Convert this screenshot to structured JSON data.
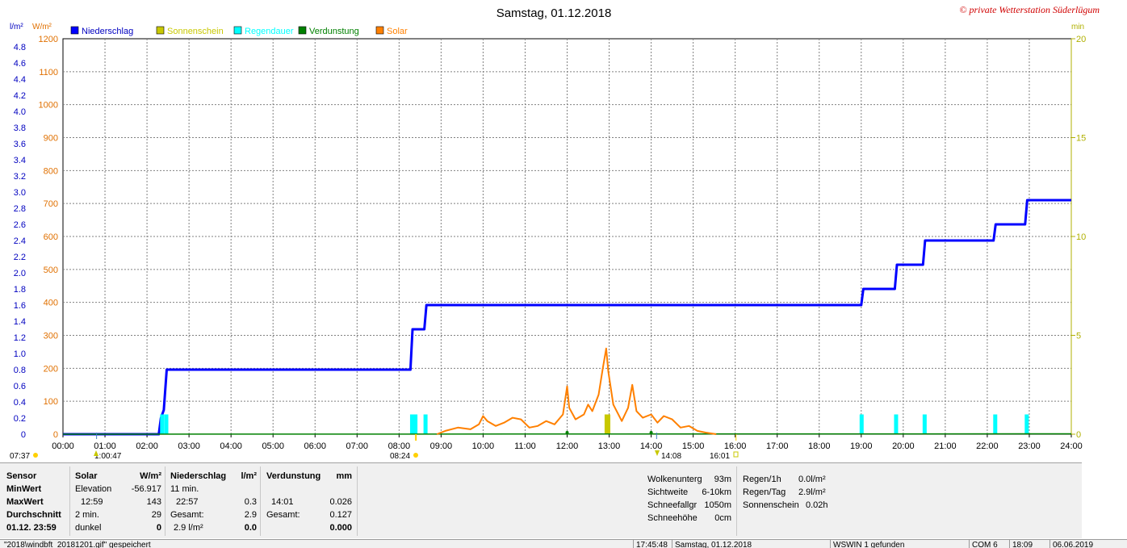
{
  "header": {
    "title": "Samstag, 01.12.2018",
    "copyright": "© private Wetterstation Süderlügum"
  },
  "legend": [
    {
      "label": "Niederschlag",
      "color": "#0000ff"
    },
    {
      "label": "Sonnenschein",
      "color": "#c8c800"
    },
    {
      "label": "Regendauer",
      "color": "#00ffff"
    },
    {
      "label": "Verdunstung",
      "color": "#008000"
    },
    {
      "label": "Solar",
      "color": "#ff8000"
    }
  ],
  "chart_data": {
    "type": "line",
    "x_range": [
      "00:00",
      "24:00"
    ],
    "x_ticks": [
      "00:00",
      "01:00",
      "02:00",
      "03:00",
      "04:00",
      "05:00",
      "06:00",
      "07:00",
      "08:00",
      "09:00",
      "10:00",
      "11:00",
      "12:00",
      "13:00",
      "14:00",
      "15:00",
      "16:00",
      "17:00",
      "18:00",
      "19:00",
      "20:00",
      "21:00",
      "22:00",
      "23:00",
      "24:00"
    ],
    "axes": {
      "left_inner": {
        "unit": "l/m²",
        "color": "#0000c0",
        "range": [
          0,
          4.9
        ],
        "ticks": [
          "0",
          "0.2",
          "0.4",
          "0.6",
          "0.8",
          "1.0",
          "1.2",
          "1.4",
          "1.6",
          "1.8",
          "2.0",
          "2.2",
          "2.4",
          "2.6",
          "2.8",
          "3.0",
          "3.2",
          "3.4",
          "3.6",
          "3.8",
          "4.0",
          "4.2",
          "4.4",
          "4.6",
          "4.8"
        ]
      },
      "left_outer": {
        "unit": "W/m²",
        "color": "#e07000",
        "range": [
          0,
          1200
        ],
        "ticks": [
          "0",
          "100",
          "200",
          "300",
          "400",
          "500",
          "600",
          "700",
          "800",
          "900",
          "1000",
          "1100",
          "1200"
        ]
      },
      "right": {
        "unit": "min",
        "color": "#b0b000",
        "range": [
          0,
          20
        ],
        "ticks": [
          "0",
          "5",
          "10",
          "15",
          "20"
        ]
      }
    },
    "series": [
      {
        "name": "Niederschlag",
        "axis": "left_inner",
        "step": true,
        "points": [
          [
            0,
            0
          ],
          [
            2.28,
            0
          ],
          [
            2.33,
            0.2
          ],
          [
            2.4,
            0.3
          ],
          [
            2.47,
            0.8
          ],
          [
            8.27,
            0.8
          ],
          [
            8.32,
            1.3
          ],
          [
            8.6,
            1.3
          ],
          [
            8.65,
            1.6
          ],
          [
            19.0,
            1.6
          ],
          [
            19.05,
            1.8
          ],
          [
            19.8,
            1.8
          ],
          [
            19.85,
            2.1
          ],
          [
            20.47,
            2.1
          ],
          [
            20.52,
            2.4
          ],
          [
            22.15,
            2.4
          ],
          [
            22.2,
            2.6
          ],
          [
            22.9,
            2.6
          ],
          [
            22.95,
            2.9
          ],
          [
            24.0,
            2.9
          ]
        ]
      },
      {
        "name": "Regendauer",
        "axis": "right",
        "bars": [
          2.35,
          2.45,
          8.3,
          8.38,
          8.62,
          19.0,
          19.82,
          20.5,
          22.18,
          22.93
        ],
        "bar_value": 1.0
      },
      {
        "name": "Sonnenschein",
        "axis": "right",
        "bars": [
          12.93,
          12.97
        ],
        "bar_value": 1.0
      },
      {
        "name": "Verdunstung",
        "axis": "left_inner",
        "values_note": "0.127 total",
        "points": [
          [
            0,
            0
          ],
          [
            24,
            0.005
          ]
        ]
      },
      {
        "name": "Solar",
        "axis": "left_outer",
        "points": [
          [
            8.9,
            0
          ],
          [
            9.1,
            10
          ],
          [
            9.4,
            20
          ],
          [
            9.7,
            15
          ],
          [
            9.9,
            30
          ],
          [
            10.0,
            55
          ],
          [
            10.1,
            40
          ],
          [
            10.3,
            25
          ],
          [
            10.5,
            35
          ],
          [
            10.7,
            50
          ],
          [
            10.9,
            45
          ],
          [
            11.1,
            20
          ],
          [
            11.3,
            25
          ],
          [
            11.5,
            40
          ],
          [
            11.7,
            30
          ],
          [
            11.9,
            60
          ],
          [
            12.0,
            145
          ],
          [
            12.05,
            80
          ],
          [
            12.2,
            45
          ],
          [
            12.4,
            60
          ],
          [
            12.5,
            90
          ],
          [
            12.6,
            70
          ],
          [
            12.75,
            120
          ],
          [
            12.85,
            200
          ],
          [
            12.93,
            260
          ],
          [
            12.98,
            190
          ],
          [
            13.1,
            90
          ],
          [
            13.3,
            40
          ],
          [
            13.45,
            80
          ],
          [
            13.55,
            150
          ],
          [
            13.65,
            70
          ],
          [
            13.8,
            50
          ],
          [
            14.0,
            60
          ],
          [
            14.15,
            35
          ],
          [
            14.3,
            55
          ],
          [
            14.5,
            45
          ],
          [
            14.7,
            20
          ],
          [
            14.9,
            25
          ],
          [
            15.1,
            10
          ],
          [
            15.3,
            5
          ],
          [
            15.55,
            0
          ]
        ]
      }
    ],
    "markers": {
      "sunrise": "08:24",
      "sunset": "16:01",
      "day_start": "07:37",
      "moon_marks": [
        "1:00:47",
        "14:08"
      ]
    }
  },
  "stats": {
    "col_sensor": {
      "header": "Sensor",
      "rows": [
        "MinWert",
        "MaxWert",
        "Durchschnitt",
        "01.12. 23:59"
      ]
    },
    "col_solar": {
      "header": "Solar",
      "unit": "W/m²",
      "rows": [
        [
          "Elevation",
          "-56.917"
        ],
        [
          "12:59",
          "143"
        ],
        [
          "2 min.",
          "29"
        ],
        [
          "dunkel",
          "0"
        ]
      ]
    },
    "col_rain": {
      "header": "Niederschlag",
      "unit": "l/m²",
      "rows": [
        [
          "11 min.",
          ""
        ],
        [
          "22:57",
          "0.3"
        ],
        [
          "Gesamt:",
          "2.9"
        ],
        [
          "2.9 l/m²",
          "0.0"
        ]
      ]
    },
    "col_evap": {
      "header": "Verdunstung",
      "unit": "mm",
      "rows": [
        [
          "",
          ""
        ],
        [
          "14:01",
          "0.026"
        ],
        [
          "Gesamt:",
          "0.127"
        ],
        [
          "",
          "0.000"
        ]
      ]
    },
    "col_cloud": {
      "rows": [
        [
          "Wolkenunterg",
          "93m"
        ],
        [
          "Sichtweite",
          "6-10km"
        ],
        [
          "Schneefallgr",
          "1050m"
        ],
        [
          "Schneehöhe",
          "0cm"
        ]
      ]
    },
    "col_rain2": {
      "rows": [
        [
          "Regen/1h",
          "0.0l/m²"
        ],
        [
          "Regen/Tag",
          "2.9l/m²"
        ],
        [
          "Sonnenschein",
          "0.02h"
        ]
      ]
    }
  },
  "statusbar": {
    "file": "\"2018\\windbft_20181201.gif\" gespeichert",
    "time": "17:45:48",
    "date": "Samstag, 01.12.2018",
    "device": "WSWIN 1 gefunden",
    "port": "COM 6",
    "clock": "18:09",
    "today": "06.06.2019"
  }
}
